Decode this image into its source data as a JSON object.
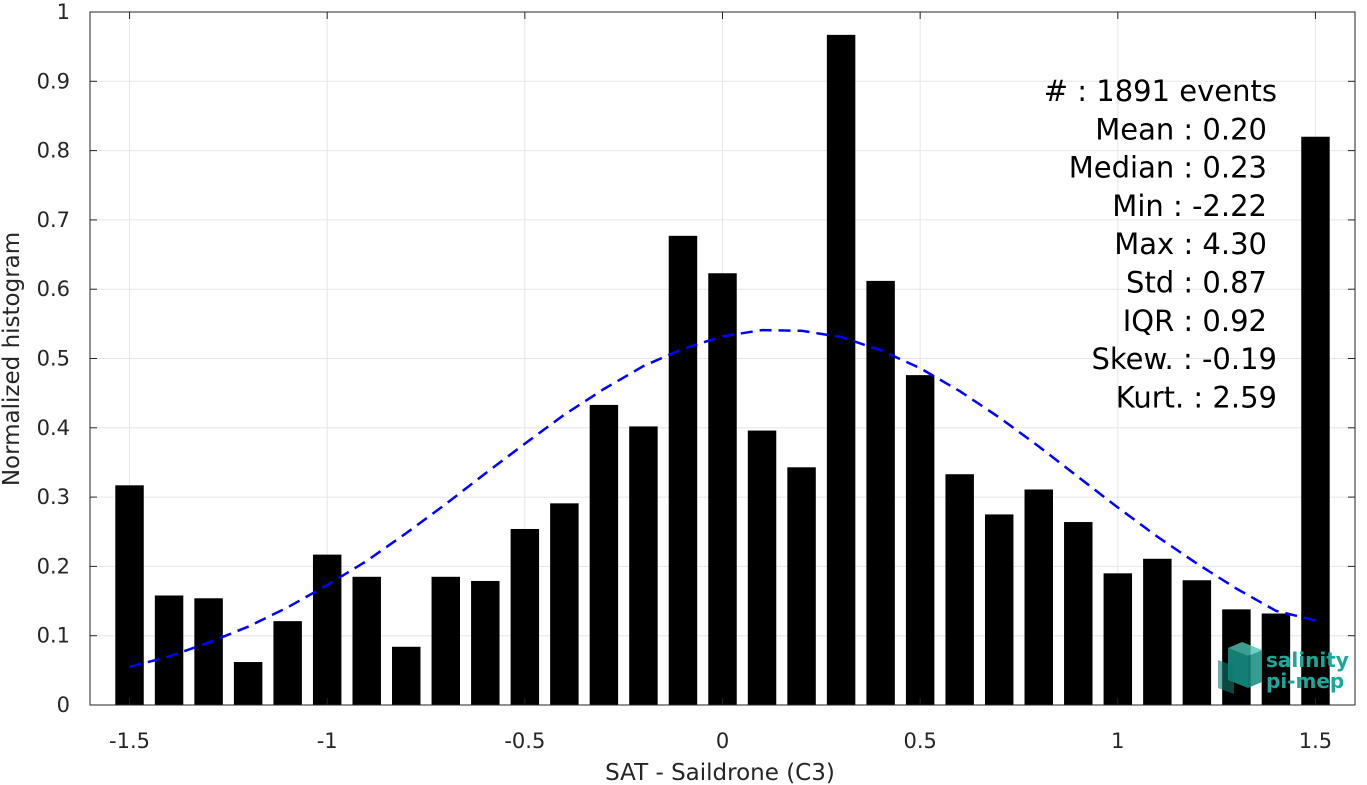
{
  "chart_data": {
    "type": "bar",
    "xlabel": "SAT - Saildrone (C3)",
    "ylabel": "Normalized histogram",
    "xlim": [
      -1.6,
      1.6
    ],
    "ylim": [
      0,
      1
    ],
    "grid": true,
    "x_ticks": [
      -1.5,
      -1,
      -0.5,
      0,
      0.5,
      1,
      1.5
    ],
    "x_tick_labels": [
      "-1.5",
      "-1",
      "-0.5",
      "0",
      "0.5",
      "1",
      "1.5"
    ],
    "y_ticks": [
      0,
      0.1,
      0.2,
      0.3,
      0.4,
      0.5,
      0.6,
      0.7,
      0.8,
      0.9,
      1
    ],
    "y_tick_labels": [
      "0",
      "0.1",
      "0.2",
      "0.3",
      "0.4",
      "0.5",
      "0.6",
      "0.7",
      "0.8",
      "0.9",
      "1"
    ],
    "bin_width": 0.1,
    "bars": {
      "x": [
        -1.5,
        -1.4,
        -1.3,
        -1.2,
        -1.1,
        -1.0,
        -0.9,
        -0.8,
        -0.7,
        -0.6,
        -0.5,
        -0.4,
        -0.3,
        -0.2,
        -0.1,
        0.0,
        0.1,
        0.2,
        0.3,
        0.4,
        0.5,
        0.6,
        0.7,
        0.8,
        0.9,
        1.0,
        1.1,
        1.2,
        1.3,
        1.4,
        1.5
      ],
      "values": [
        0.317,
        0.158,
        0.154,
        0.062,
        0.121,
        0.217,
        0.185,
        0.084,
        0.185,
        0.179,
        0.254,
        0.291,
        0.433,
        0.402,
        0.677,
        0.623,
        0.396,
        0.343,
        0.967,
        0.612,
        0.476,
        0.333,
        0.275,
        0.311,
        0.264,
        0.19,
        0.211,
        0.18,
        0.138,
        0.132,
        0.82
      ],
      "color": "#000000"
    },
    "fit_curve": {
      "style": "dashed",
      "color": "#0000ff",
      "x": [
        -1.5,
        -1.4,
        -1.3,
        -1.2,
        -1.1,
        -1.0,
        -0.9,
        -0.8,
        -0.7,
        -0.6,
        -0.5,
        -0.4,
        -0.3,
        -0.2,
        -0.1,
        0.0,
        0.1,
        0.2,
        0.3,
        0.4,
        0.5,
        0.6,
        0.7,
        0.8,
        0.9,
        1.0,
        1.1,
        1.2,
        1.3,
        1.4,
        1.5
      ],
      "y": [
        0.055,
        0.07,
        0.09,
        0.113,
        0.141,
        0.173,
        0.208,
        0.248,
        0.29,
        0.334,
        0.377,
        0.419,
        0.456,
        0.489,
        0.514,
        0.532,
        0.541,
        0.54,
        0.531,
        0.512,
        0.486,
        0.453,
        0.415,
        0.373,
        0.329,
        0.285,
        0.243,
        0.204,
        0.168,
        0.136,
        0.122
      ]
    },
    "stats_lines": [
      "#  : 1891 events",
      "Mean : 0.20",
      "Median : 0.23",
      "Min : -2.22",
      "Max : 4.30",
      "Std : 0.87",
      "IQR : 0.92",
      "Skew. : -0.19",
      "Kurt. : 2.59"
    ]
  },
  "logo": {
    "line1": "salinity",
    "line2": "pi-mep",
    "color": "#1aa89a"
  }
}
